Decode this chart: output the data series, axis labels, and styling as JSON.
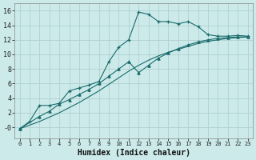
{
  "xlabel": "Humidex (Indice chaleur)",
  "ylabel": "",
  "bg_color": "#cceaea",
  "grid_color": "#b0d0d0",
  "line_color": "#1a6b6b",
  "xlim": [
    -0.5,
    23.5
  ],
  "ylim": [
    -1.5,
    17
  ],
  "xticks": [
    0,
    1,
    2,
    3,
    4,
    5,
    6,
    7,
    8,
    9,
    10,
    11,
    12,
    13,
    14,
    15,
    16,
    17,
    18,
    19,
    20,
    21,
    22,
    23
  ],
  "yticks": [
    0,
    2,
    4,
    6,
    8,
    10,
    12,
    14,
    16
  ],
  "ytick_labels": [
    "-0",
    "2",
    "4",
    "6",
    "8",
    "10",
    "12",
    "14",
    "16"
  ],
  "series1_x": [
    0,
    1,
    2,
    3,
    4,
    5,
    6,
    7,
    8,
    9,
    10,
    11,
    12,
    13,
    14,
    15,
    16,
    17,
    18,
    19,
    20,
    21,
    22,
    23
  ],
  "series1_y": [
    -0.2,
    0.8,
    3.0,
    3.0,
    3.3,
    5.0,
    5.4,
    5.8,
    6.3,
    9.0,
    11.0,
    12.0,
    15.8,
    15.5,
    14.5,
    14.5,
    14.2,
    14.5,
    13.8,
    12.7,
    12.5,
    12.5,
    12.6,
    12.5
  ],
  "series2_x": [
    0,
    2,
    3,
    4,
    5,
    6,
    7,
    8,
    9,
    10,
    11,
    12,
    13,
    14,
    15,
    16,
    17,
    18,
    19,
    20,
    21,
    22,
    23
  ],
  "series2_y": [
    -0.2,
    1.5,
    2.2,
    3.2,
    3.8,
    4.5,
    5.2,
    6.0,
    7.0,
    8.0,
    9.0,
    7.5,
    8.5,
    9.5,
    10.2,
    10.8,
    11.3,
    11.7,
    12.0,
    12.2,
    12.3,
    12.4,
    12.4
  ],
  "series3_x": [
    0,
    1,
    2,
    3,
    4,
    5,
    6,
    7,
    8,
    9,
    10,
    11,
    12,
    13,
    14,
    15,
    16,
    17,
    18,
    19,
    20,
    21,
    22,
    23
  ],
  "series3_y": [
    -0.2,
    0.3,
    0.8,
    1.4,
    2.0,
    2.7,
    3.4,
    4.2,
    5.0,
    5.9,
    6.8,
    7.7,
    8.5,
    9.2,
    9.8,
    10.3,
    10.7,
    11.1,
    11.5,
    11.8,
    12.0,
    12.2,
    12.3,
    12.4
  ]
}
